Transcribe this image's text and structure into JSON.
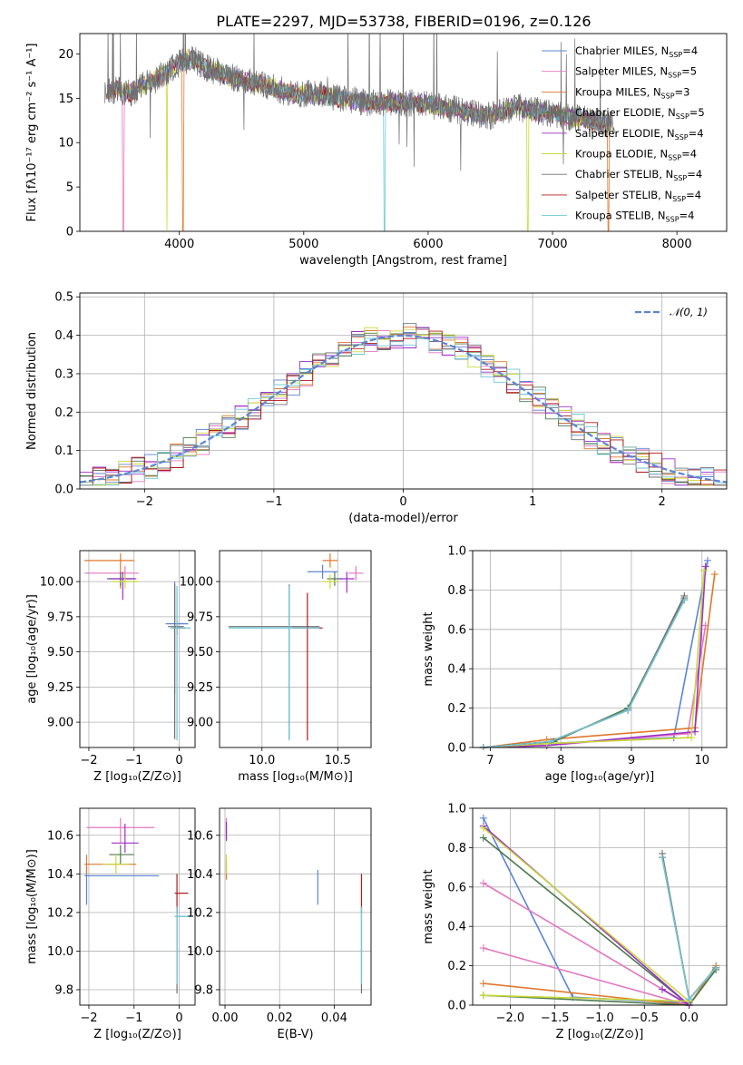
{
  "colors": {
    "Chabrier MILES": "#5b84d6",
    "Salpeter MILES": "#e377c2",
    "Kroupa MILES": "#e0782c",
    "Chabrier ELODIE": "#4d7a4d",
    "Salpeter ELODIE": "#9b30c8",
    "Kroupa ELODIE": "#c8d838",
    "Chabrier STELIB": "#707070",
    "Salpeter STELIB": "#b01818",
    "Kroupa STELIB": "#6cc8d8"
  },
  "chart_data": [
    {
      "id": "spectrum",
      "type": "line",
      "title": "PLATE=2297, MJD=53738, FIBERID=0196, z=0.126",
      "xlabel": "wavelength [Angstrom, rest frame]",
      "ylabel": "Flux [fλ10⁻¹⁷ erg cm⁻² s⁻¹ A⁻¹]",
      "xlim": [
        3200,
        8400
      ],
      "ylim": [
        0,
        22.3
      ],
      "xticks": [
        4000,
        5000,
        6000,
        7000,
        8000
      ],
      "yticks": [
        0,
        5,
        10,
        15,
        20
      ],
      "grid": false,
      "legend_position": "top-right",
      "legend": [
        {
          "series": "Chabrier MILES",
          "label": "Chabrier MILES, N",
          "sub": "SSP",
          "val": "=4"
        },
        {
          "series": "Salpeter MILES",
          "label": "Salpeter MILES, N",
          "sub": "SSP",
          "val": "=5"
        },
        {
          "series": "Kroupa MILES",
          "label": "Kroupa MILES, N",
          "sub": "SSP",
          "val": "=3"
        },
        {
          "series": "Chabrier ELODIE",
          "label": "Chabrier ELODIE, N",
          "sub": "SSP",
          "val": "=5"
        },
        {
          "series": "Salpeter ELODIE",
          "label": "Salpeter ELODIE, N",
          "sub": "SSP",
          "val": "=4"
        },
        {
          "series": "Kroupa ELODIE",
          "label": "Kroupa ELODIE, N",
          "sub": "SSP",
          "val": "=4"
        },
        {
          "series": "Chabrier STELIB",
          "label": "Chabrier STELIB, N",
          "sub": "SSP",
          "val": "=4"
        },
        {
          "series": "Salpeter STELIB",
          "label": "Salpeter STELIB, N",
          "sub": "SSP",
          "val": "=4"
        },
        {
          "series": "Kroupa STELIB",
          "label": "Kroupa STELIB, N",
          "sub": "SSP",
          "val": "=4"
        }
      ],
      "data_flux_anchors": {
        "wavelength": [
          3400,
          3500,
          3600,
          3700,
          3800,
          3900,
          4000,
          4100,
          4200,
          4300,
          4400,
          4500,
          4700,
          4900,
          5100,
          5300,
          5500,
          5700,
          5900,
          6100,
          6300,
          6500,
          6700,
          6900,
          7100,
          7300,
          7500
        ],
        "flux": [
          15.5,
          16.0,
          15.5,
          16.5,
          17.0,
          18.0,
          19.0,
          19.5,
          18.5,
          18.0,
          17.5,
          17.0,
          16.5,
          15.5,
          15.5,
          15.0,
          14.5,
          14.5,
          14.5,
          14.0,
          13.5,
          13.0,
          14.0,
          13.5,
          13.0,
          12.5,
          12.0
        ]
      },
      "model_dropouts": [
        {
          "series": "Salpeter MILES",
          "wavelength": 3550
        },
        {
          "series": "Kroupa ELODIE",
          "wavelength": 3900
        },
        {
          "series": "Kroupa MILES",
          "wavelength": 4030
        },
        {
          "series": "Kroupa STELIB",
          "wavelength": 5650
        },
        {
          "series": "Kroupa ELODIE",
          "wavelength": 6800
        },
        {
          "series": "Kroupa MILES",
          "wavelength": 7450
        }
      ]
    },
    {
      "id": "residuals",
      "type": "bar",
      "xlabel": "(data-model)/error",
      "ylabel": "Normed distribution",
      "xlim": [
        -2.5,
        2.5
      ],
      "ylim": [
        0,
        0.51
      ],
      "xticks": [
        -2,
        -1,
        0,
        1,
        2
      ],
      "yticks": [
        0.0,
        0.1,
        0.2,
        0.3,
        0.4,
        0.5
      ],
      "grid": true,
      "legend_position": "top-right",
      "reference_curve": {
        "label": "𝒩(0, 1)",
        "mean": 0,
        "sigma": 1
      },
      "bin_width": 0.1,
      "bin_centers_from": -2.45
    },
    {
      "id": "age-vs-Z",
      "type": "scatter",
      "xlabel": "Z [log₁₀(Z/Z⊙)]",
      "ylabel": "age  [log₁₀(age/yr)]",
      "xlim": [
        -2.2,
        0.35
      ],
      "ylim": [
        8.82,
        10.22
      ],
      "xticks": [
        -2,
        -1,
        0
      ],
      "yticks": [
        9.0,
        9.25,
        9.5,
        9.75,
        10.0
      ],
      "grid": true,
      "points": [
        {
          "series": "Chabrier MILES",
          "x": -0.1,
          "y": 9.7,
          "xerr": [
            0.2,
            0.3
          ],
          "yerr": [
            0.5,
            0.3
          ]
        },
        {
          "series": "Salpeter MILES",
          "x": -1.2,
          "y": 10.06,
          "xerr": [
            0.9,
            0.3
          ],
          "yerr": [
            0.05,
            0.05
          ]
        },
        {
          "series": "Kroupa MILES",
          "x": -1.3,
          "y": 10.15,
          "xerr": [
            0.8,
            0.3
          ],
          "yerr": [
            0.2,
            0.05
          ]
        },
        {
          "series": "Chabrier ELODIE",
          "x": -1.3,
          "y": 10.02,
          "xerr": [
            0.3,
            0.3
          ],
          "yerr": [
            0.05,
            0.05
          ]
        },
        {
          "series": "Salpeter ELODIE",
          "x": -1.25,
          "y": 10.02,
          "xerr": [
            0.3,
            0.3
          ],
          "yerr": [
            0.15,
            0.05
          ]
        },
        {
          "series": "Kroupa ELODIE",
          "x": -1.2,
          "y": 10.0,
          "xerr": [
            0.3,
            0.3
          ],
          "yerr": [
            0.05,
            0.05
          ]
        },
        {
          "series": "Chabrier STELIB",
          "x": -0.1,
          "y": 9.68,
          "xerr": [
            0.15,
            0.2
          ],
          "yerr": [
            0.8,
            0.3
          ]
        },
        {
          "series": "Salpeter STELIB",
          "x": -0.05,
          "y": 9.67,
          "xerr": [
            0.1,
            0.2
          ],
          "yerr": [
            0.05,
            0.05
          ]
        },
        {
          "series": "Kroupa STELIB",
          "x": -0.05,
          "y": 9.67,
          "xerr": [
            0.15,
            0.3
          ],
          "yerr": [
            0.8,
            0.3
          ]
        }
      ]
    },
    {
      "id": "age-vs-mass",
      "type": "scatter",
      "xlabel": "mass [log₁₀(M/M⊙)]",
      "ylabel": "",
      "xlim": [
        9.72,
        10.72
      ],
      "ylim": [
        8.82,
        10.22
      ],
      "xticks": [
        10.0,
        10.5
      ],
      "yticks": [
        9.0,
        9.25,
        9.5,
        9.75,
        10.0
      ],
      "grid": true,
      "points": [
        {
          "series": "Chabrier MILES",
          "x": 10.4,
          "y": 10.07,
          "xerr": [
            0.1,
            0.1
          ],
          "yerr": [
            0.05,
            0.05
          ]
        },
        {
          "series": "Salpeter MILES",
          "x": 10.62,
          "y": 10.06,
          "xerr": [
            0.05,
            0.05
          ],
          "yerr": [
            0.05,
            0.05
          ]
        },
        {
          "series": "Kroupa MILES",
          "x": 10.45,
          "y": 10.15,
          "xerr": [
            0.05,
            0.05
          ],
          "yerr": [
            0.05,
            0.05
          ]
        },
        {
          "series": "Chabrier ELODIE",
          "x": 10.48,
          "y": 10.02,
          "xerr": [
            0.05,
            0.05
          ],
          "yerr": [
            0.05,
            0.05
          ]
        },
        {
          "series": "Salpeter ELODIE",
          "x": 10.56,
          "y": 10.02,
          "xerr": [
            0.05,
            0.05
          ],
          "yerr": [
            0.1,
            0.05
          ]
        },
        {
          "series": "Kroupa ELODIE",
          "x": 10.45,
          "y": 10.0,
          "xerr": [
            0.05,
            0.05
          ],
          "yerr": [
            0.05,
            0.05
          ]
        },
        {
          "series": "Chabrier STELIB",
          "x": 10.18,
          "y": 9.68,
          "xerr": [
            0.4,
            0.2
          ],
          "yerr": [
            0.8,
            0.3
          ]
        },
        {
          "series": "Salpeter STELIB",
          "x": 10.3,
          "y": 9.67,
          "xerr": [
            0.1,
            0.1
          ],
          "yerr": [
            0.8,
            0.25
          ]
        },
        {
          "series": "Kroupa STELIB",
          "x": 10.18,
          "y": 9.67,
          "xerr": [
            0.4,
            0.2
          ],
          "yerr": [
            0.8,
            0.3
          ]
        }
      ]
    },
    {
      "id": "mass-weight-vs-age",
      "type": "line",
      "xlabel": "age  [log₁₀(age/yr)]",
      "ylabel": "mass weight",
      "xlim": [
        6.75,
        10.35
      ],
      "ylim": [
        0,
        1.0
      ],
      "xticks": [
        7,
        8,
        9,
        10
      ],
      "yticks": [
        0.0,
        0.2,
        0.4,
        0.6,
        0.8,
        1.0
      ],
      "grid": true,
      "series": [
        {
          "series": "Chabrier MILES",
          "x": [
            6.9,
            7.8,
            9.6,
            10.08
          ],
          "y": [
            0.0,
            0.02,
            0.05,
            0.95
          ]
        },
        {
          "series": "Salpeter MILES",
          "x": [
            6.9,
            7.8,
            9.8,
            10.05
          ],
          "y": [
            0.0,
            0.01,
            0.07,
            0.62
          ]
        },
        {
          "series": "Kroupa MILES",
          "x": [
            6.9,
            7.8,
            9.9,
            10.18
          ],
          "y": [
            0.0,
            0.04,
            0.1,
            0.88
          ]
        },
        {
          "series": "Chabrier ELODIE",
          "x": [
            6.9,
            7.9,
            8.95,
            9.75
          ],
          "y": [
            0.0,
            0.03,
            0.2,
            0.76
          ]
        },
        {
          "series": "Salpeter ELODIE",
          "x": [
            6.9,
            7.8,
            9.9,
            10.05
          ],
          "y": [
            0.0,
            0.01,
            0.08,
            0.92
          ]
        },
        {
          "series": "Kroupa ELODIE",
          "x": [
            6.9,
            7.8,
            9.85,
            10.03
          ],
          "y": [
            0.0,
            0.02,
            0.05,
            0.9
          ]
        },
        {
          "series": "Chabrier STELIB",
          "x": [
            6.9,
            7.85,
            8.95,
            9.75
          ],
          "y": [
            0.0,
            0.03,
            0.19,
            0.77
          ]
        },
        {
          "series": "Salpeter STELIB",
          "x": [
            6.9,
            7.85,
            8.95,
            9.75
          ],
          "y": [
            0.0,
            0.03,
            0.19,
            0.75
          ]
        },
        {
          "series": "Kroupa STELIB",
          "x": [
            6.9,
            7.85,
            8.95,
            9.75
          ],
          "y": [
            0.0,
            0.03,
            0.19,
            0.75
          ]
        }
      ]
    },
    {
      "id": "mass-vs-Z",
      "type": "scatter",
      "xlabel": "Z [log₁₀(Z/Z⊙)]",
      "ylabel": "mass [log₁₀(M/M⊙)]",
      "xlim": [
        -2.2,
        0.35
      ],
      "ylim": [
        9.72,
        10.74
      ],
      "xticks": [
        -2,
        -1,
        0
      ],
      "yticks": [
        9.8,
        10.0,
        10.2,
        10.4,
        10.6
      ],
      "grid": true,
      "points": [
        {
          "series": "Chabrier MILES",
          "x": -2.05,
          "y": 10.39,
          "xerr": [
            0.05,
            1.6
          ],
          "yerr": [
            0.15,
            0.05
          ]
        },
        {
          "series": "Salpeter MILES",
          "x": -1.3,
          "y": 10.64,
          "xerr": [
            0.75,
            0.75
          ],
          "yerr": [
            0.08,
            0.05
          ]
        },
        {
          "series": "Kroupa MILES",
          "x": -2.05,
          "y": 10.45,
          "xerr": [
            0.05,
            1.1
          ],
          "yerr": [
            0.05,
            0.05
          ]
        },
        {
          "series": "Chabrier ELODIE",
          "x": -1.3,
          "y": 10.5,
          "xerr": [
            0.25,
            0.3
          ],
          "yerr": [
            0.05,
            0.05
          ]
        },
        {
          "series": "Salpeter ELODIE",
          "x": -1.2,
          "y": 10.56,
          "xerr": [
            0.3,
            0.3
          ],
          "yerr": [
            0.05,
            0.1
          ]
        },
        {
          "series": "Kroupa ELODIE",
          "x": -1.4,
          "y": 10.45,
          "xerr": [
            0.3,
            0.3
          ],
          "yerr": [
            0.05,
            0.05
          ]
        },
        {
          "series": "Chabrier STELIB",
          "x": -0.05,
          "y": 10.18,
          "xerr": [
            0.05,
            0.3
          ],
          "yerr": [
            0.4,
            0.05
          ]
        },
        {
          "series": "Salpeter STELIB",
          "x": -0.05,
          "y": 10.3,
          "xerr": [
            0.05,
            0.25
          ],
          "yerr": [
            0.1,
            0.1
          ]
        },
        {
          "series": "Kroupa STELIB",
          "x": -0.05,
          "y": 10.18,
          "xerr": [
            0.05,
            0.3
          ],
          "yerr": [
            0.35,
            0.05
          ]
        }
      ]
    },
    {
      "id": "mass-vs-EBV",
      "type": "scatter",
      "xlabel": "E(B-V)",
      "ylabel": "",
      "xlim": [
        -0.002,
        0.0535
      ],
      "ylim": [
        9.72,
        10.74
      ],
      "xticks": [
        0.0,
        0.02,
        0.04
      ],
      "yticks": [
        9.8,
        10.0,
        10.2,
        10.4,
        10.6
      ],
      "grid": true,
      "points": [
        {
          "series": "Chabrier MILES",
          "x": 0.034,
          "y": 10.34,
          "xerr": [
            0,
            0
          ],
          "yerr": [
            0.1,
            0.08
          ]
        },
        {
          "series": "Salpeter MILES",
          "x": 0.0005,
          "y": 10.64,
          "xerr": [
            0,
            0
          ],
          "yerr": [
            0.05,
            0.05
          ]
        },
        {
          "series": "Kroupa MILES",
          "x": 0.0005,
          "y": 10.42,
          "xerr": [
            0,
            0
          ],
          "yerr": [
            0.05,
            0.05
          ]
        },
        {
          "series": "Salpeter ELODIE",
          "x": 0.0005,
          "y": 10.62,
          "xerr": [
            0,
            0
          ],
          "yerr": [
            0.05,
            0.05
          ]
        },
        {
          "series": "Kroupa ELODIE",
          "x": 0.0005,
          "y": 10.45,
          "xerr": [
            0,
            0
          ],
          "yerr": [
            0.05,
            0.05
          ]
        },
        {
          "series": "Chabrier STELIB",
          "x": 0.05,
          "y": 10.18,
          "xerr": [
            0,
            0
          ],
          "yerr": [
            0.4,
            0.05
          ]
        },
        {
          "series": "Salpeter STELIB",
          "x": 0.05,
          "y": 10.3,
          "xerr": [
            0,
            0
          ],
          "yerr": [
            0.1,
            0.1
          ]
        },
        {
          "series": "Kroupa STELIB",
          "x": 0.05,
          "y": 10.18,
          "xerr": [
            0,
            0
          ],
          "yerr": [
            0.35,
            0.05
          ]
        }
      ]
    },
    {
      "id": "mass-weight-vs-Z",
      "type": "line",
      "xlabel": "Z [log₁₀(Z/Z⊙)]",
      "ylabel": "mass weight",
      "xlim": [
        -2.42,
        0.42
      ],
      "ylim": [
        0,
        1.0
      ],
      "xticks": [
        -2.0,
        -1.5,
        -1.0,
        -0.5,
        0.0
      ],
      "yticks": [
        0.0,
        0.2,
        0.4,
        0.6,
        0.8,
        1.0
      ],
      "grid": true,
      "series": [
        {
          "series": "Chabrier MILES",
          "x": [
            -2.3,
            -1.3,
            0.0
          ],
          "y": [
            0.95,
            0.04,
            0.01
          ]
        },
        {
          "series": "Salpeter MILES",
          "x": [
            -2.3,
            0.0,
            -0.3,
            0.0,
            -2.3
          ],
          "y": [
            0.29,
            0.0,
            0.08,
            0.0,
            0.62
          ]
        },
        {
          "series": "Kroupa MILES",
          "x": [
            -2.3,
            0.0,
            0.3,
            0.0
          ],
          "y": [
            0.11,
            0.0,
            0.2,
            0.0
          ]
        },
        {
          "series": "Chabrier ELODIE",
          "x": [
            -2.3,
            0.0,
            0.3,
            0.0,
            -2.3
          ],
          "y": [
            0.85,
            0.0,
            0.18,
            0.0,
            0.05
          ]
        },
        {
          "series": "Salpeter ELODIE",
          "x": [
            -2.3,
            0.0,
            -0.3,
            0.0
          ],
          "y": [
            0.91,
            0.0,
            0.08,
            0.0
          ]
        },
        {
          "series": "Kroupa ELODIE",
          "x": [
            -2.3,
            0.0,
            -2.3
          ],
          "y": [
            0.9,
            0.02,
            0.05
          ]
        },
        {
          "series": "Chabrier STELIB",
          "x": [
            -0.3,
            0.0,
            0.3
          ],
          "y": [
            0.77,
            0.03,
            0.19
          ]
        },
        {
          "series": "Salpeter STELIB",
          "x": [
            -0.3,
            0.0,
            0.3
          ],
          "y": [
            0.75,
            0.03,
            0.19
          ]
        },
        {
          "series": "Kroupa STELIB",
          "x": [
            -0.3,
            0.0,
            0.3
          ],
          "y": [
            0.75,
            0.03,
            0.19
          ]
        }
      ]
    }
  ]
}
